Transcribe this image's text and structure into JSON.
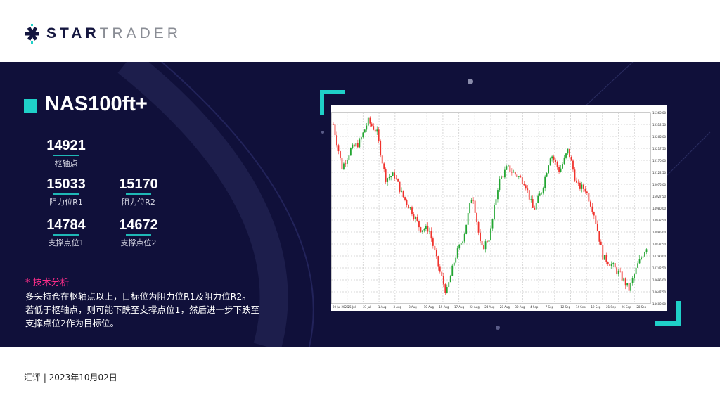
{
  "brand": {
    "part1": "STAR",
    "part2": "TRADER"
  },
  "symbol": "NAS100ft+",
  "levels": {
    "pivot": {
      "value": "14921",
      "label": "枢轴点"
    },
    "r1": {
      "value": "15033",
      "label": "阻力位R1"
    },
    "r2": {
      "value": "15170",
      "label": "阻力位R2"
    },
    "s1": {
      "value": "14784",
      "label": "支撑点位1"
    },
    "s2": {
      "value": "14672",
      "label": "支撑点位2"
    }
  },
  "analysis": {
    "title": "* 技术分析",
    "lines": [
      "多头持仓在枢轴点以上，目标位为阻力位R1及阻力位R2。",
      "若低于枢轴点，则可能下跌至支撑点位1，然后进一步下跌至",
      "支撑点位2作为目标位。"
    ]
  },
  "footer": "汇评 | 2023年10月02日",
  "colors": {
    "accent": "#1fd0c8",
    "background": "#10103a",
    "highlight": "#ff2d8a",
    "up": "#22a531",
    "down": "#f0322c"
  },
  "chart_data": {
    "type": "candlestick",
    "ylim": [
      14600,
      15360
    ],
    "x_ticks": [
      "20 Jul 2023",
      "25 Jul",
      "27 Jul",
      "1 Aug",
      "3 Aug",
      "8 Aug",
      "10 Aug",
      "15 Aug",
      "17 Aug",
      "22 Aug",
      "24 Aug",
      "28 Aug",
      "30 Aug",
      "4 Sep",
      "7 Sep",
      "12 Sep",
      "14 Sep",
      "19 Sep",
      "21 Sep",
      "26 Sep",
      "28 Sep"
    ],
    "approx_close_path": [
      15312,
      15141,
      15212,
      15240,
      15326,
      15283,
      15098,
      15112,
      15027,
      14970,
      14898,
      14898,
      14756,
      14642,
      14784,
      14870,
      15041,
      14813,
      14870,
      15084,
      15141,
      15112,
      15084,
      14970,
      15055,
      15198,
      15126,
      15212,
      15069,
      15055,
      14955,
      14784,
      14756,
      14713,
      14656,
      14756,
      14827
    ]
  }
}
